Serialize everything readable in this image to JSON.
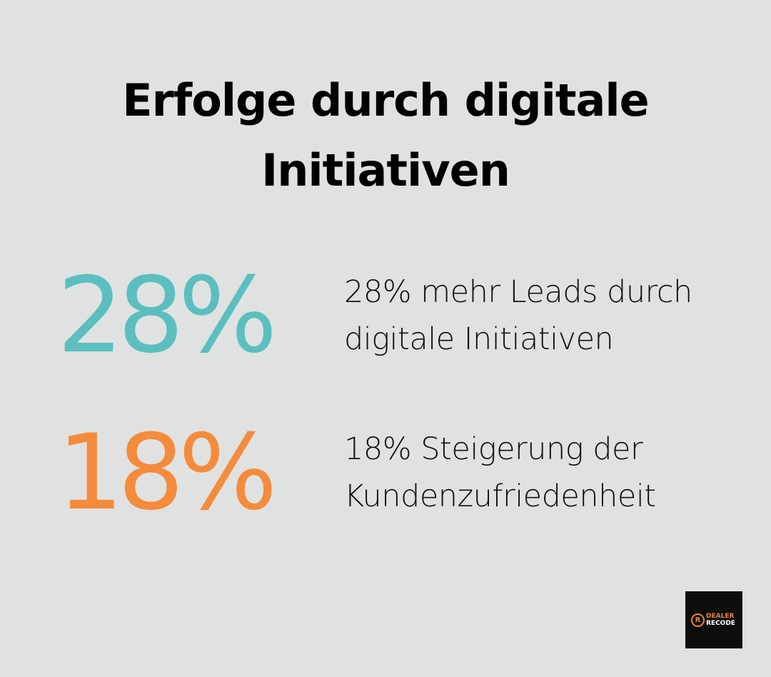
{
  "title": {
    "line1": "Erfolge durch digitale",
    "line2": "Initiativen"
  },
  "stats": [
    {
      "value": "28%",
      "line1": "28% mehr Leads durch",
      "line2": "digitale Initiativen",
      "color": "#5bbfbf"
    },
    {
      "value": "18%",
      "line1": "18% Steigerung der",
      "line2": "Kundenzufriedenheit",
      "color": "#f58b3c"
    }
  ],
  "logo": {
    "mark": "R",
    "line1": "DEALER",
    "line2": "RECODE"
  }
}
